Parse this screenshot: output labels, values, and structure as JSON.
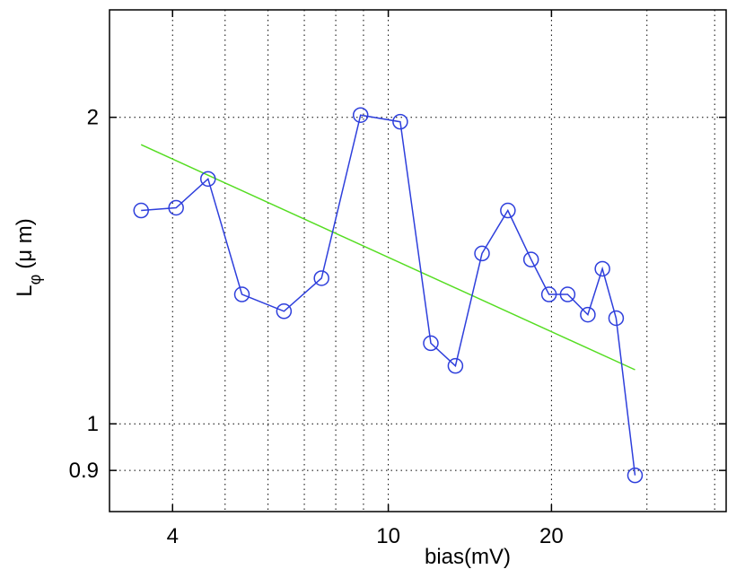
{
  "chart_data": {
    "type": "line",
    "x_scale": "log",
    "y_scale": "log",
    "xlim": [
      3.06,
      42
    ],
    "ylim": [
      0.82,
      2.55
    ],
    "grid": true,
    "xlabel": "bias(mV)",
    "ylabel": {
      "main": "L",
      "subscript": "φ",
      "unit": "(μ m)"
    },
    "x_ticks": [
      {
        "value": 4,
        "label": "4"
      },
      {
        "value": 10,
        "label": "10"
      },
      {
        "value": 20,
        "label": "20"
      }
    ],
    "x_minor_grid": [
      3,
      5,
      6,
      7,
      8,
      9,
      30,
      40
    ],
    "y_ticks": [
      {
        "value": 0.9,
        "label": "0.9"
      },
      {
        "value": 1,
        "label": "1"
      },
      {
        "value": 2,
        "label": "2"
      }
    ],
    "series": [
      {
        "color": "#2e3fdc",
        "marker": "circle",
        "x": [
          3.5,
          4.06,
          4.65,
          5.37,
          6.42,
          7.53,
          8.89,
          10.52,
          11.98,
          13.3,
          14.89,
          16.62,
          18.34,
          19.79,
          21.42,
          23.34,
          24.83,
          26.32,
          28.52
        ],
        "y": [
          1.62,
          1.63,
          1.74,
          1.34,
          1.29,
          1.39,
          2.01,
          1.98,
          1.2,
          1.14,
          1.47,
          1.62,
          1.45,
          1.34,
          1.34,
          1.28,
          1.42,
          1.27,
          0.89
        ]
      },
      {
        "color": "#55dd22",
        "marker": "none",
        "x": [
          3.5,
          28.52
        ],
        "y": [
          1.88,
          1.13
        ]
      }
    ]
  }
}
